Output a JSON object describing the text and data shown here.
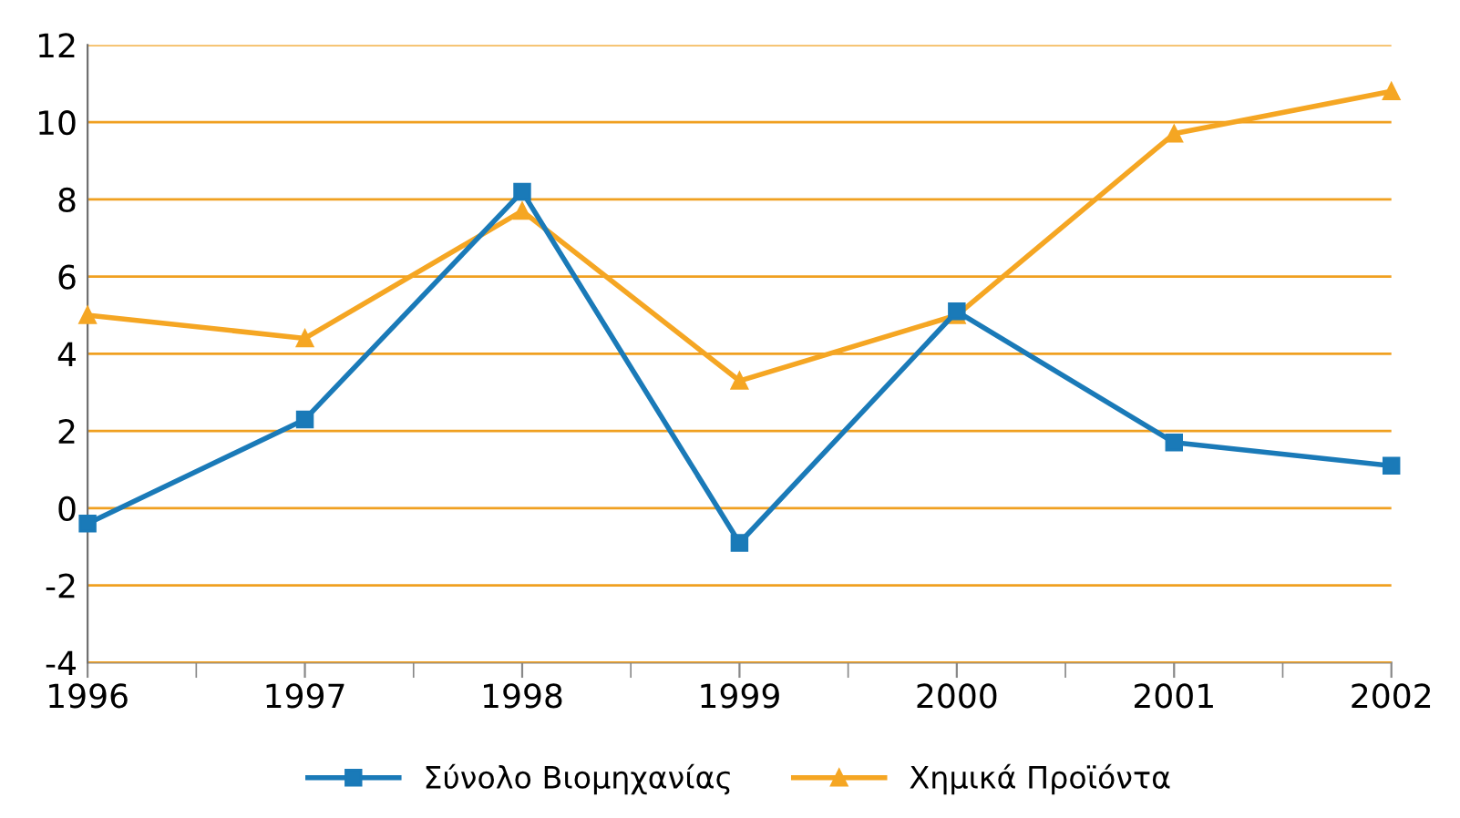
{
  "chart_data": {
    "type": "line",
    "x": [
      1996,
      1997,
      1998,
      1999,
      2000,
      2001,
      2002
    ],
    "series": [
      {
        "name": "Σύνολο Βιομηχανίας",
        "color": "#1a7ab8",
        "marker": "square",
        "values": [
          -0.4,
          2.3,
          8.2,
          -0.9,
          5.1,
          1.7,
          1.1
        ]
      },
      {
        "name": "Χημικά Προϊόντα",
        "color": "#f5a623",
        "marker": "triangle",
        "values": [
          5.0,
          4.4,
          7.7,
          3.3,
          5.0,
          9.7,
          10.8
        ]
      }
    ],
    "xlim": [
      1996,
      2002
    ],
    "xticks": [
      1996,
      1997,
      1998,
      1999,
      2000,
      2001,
      2002
    ],
    "ylim": [
      -4,
      12
    ],
    "yticks": [
      -4,
      -2,
      0,
      2,
      4,
      6,
      8,
      10,
      12
    ],
    "grid": "y",
    "legend": "bottom",
    "line_style": "solid"
  }
}
